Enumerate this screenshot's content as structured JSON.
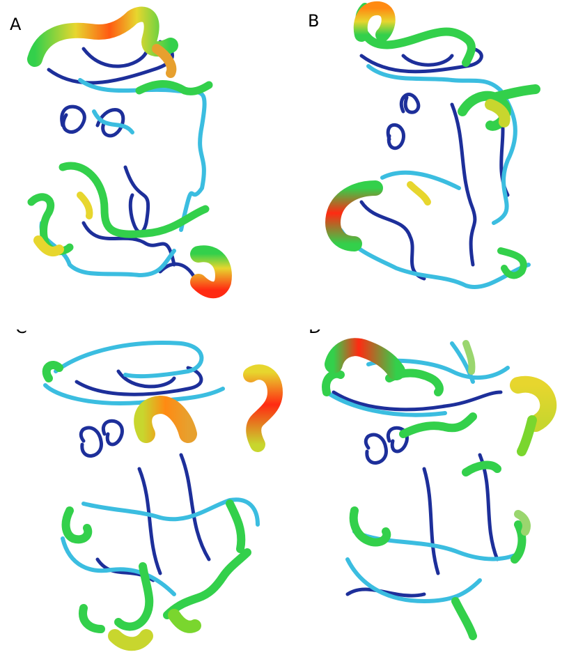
{
  "panels": [
    {
      "label": "A"
    },
    {
      "label": "B"
    },
    {
      "label": "C"
    },
    {
      "label": "D"
    }
  ],
  "colors": {
    "low": "#1d2f9a",
    "mid_low": "#3bbde0",
    "mid": "#33d04b",
    "mid_high": "#e7d62e",
    "high": "#ff2a12"
  }
}
